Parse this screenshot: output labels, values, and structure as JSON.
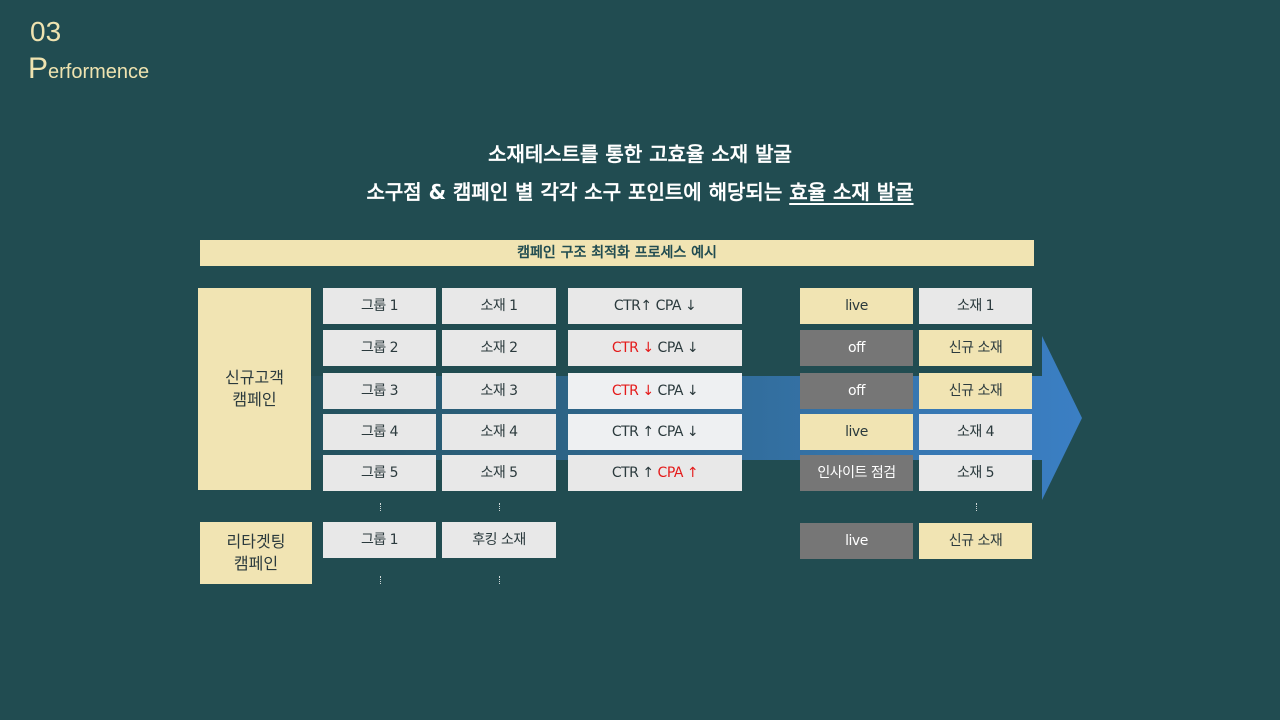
{
  "section": {
    "number": "03",
    "title_initial": "P",
    "title_rest": "erformence"
  },
  "headline": {
    "line1": "소재테스트를 통한 고효율 소재 발굴",
    "line2_prefix": "소구점 & 캠페인 별 각각 소구 포인트에 해당되는 ",
    "line2_underlined": "효율 소재 발굴"
  },
  "banner": "캠페인 구조 최적화 프로세스 예시",
  "campaigns": {
    "new_customer": "신규고객\n캠페인",
    "retargeting": "리타겟팅\n캠페인"
  },
  "rows": [
    {
      "group": "그룹 1",
      "creative": "소재 1",
      "metric": {
        "ctr": "CTR",
        "ctr_arrow": "↑",
        "cpa": "CPA",
        "cpa_arrow": "↓"
      },
      "status": "live",
      "result": "소재 1"
    },
    {
      "group": "그룹 2",
      "creative": "소재 2",
      "metric": {
        "ctr": "CTR",
        "ctr_arrow": "↓",
        "cpa": "CPA",
        "cpa_arrow": "↓"
      },
      "status": "off",
      "result": "신규 소재"
    },
    {
      "group": "그룹 3",
      "creative": "소재 3",
      "metric": {
        "ctr": "CTR",
        "ctr_arrow": "↓",
        "cpa": "CPA",
        "cpa_arrow": "↓"
      },
      "status": "off",
      "result": "신규 소재"
    },
    {
      "group": "그룹 4",
      "creative": "소재 4",
      "metric": {
        "ctr": "CTR",
        "ctr_arrow": "↑",
        "cpa": "CPA",
        "cpa_arrow": "↓"
      },
      "status": "live",
      "result": "소재 4"
    },
    {
      "group": "그룹 5",
      "creative": "소재 5",
      "metric": {
        "ctr": "CTR",
        "ctr_arrow": "↑",
        "cpa": "CPA",
        "cpa_arrow": "↑"
      },
      "status": "인사이트 점검",
      "result": "소재 5"
    }
  ],
  "retarget_row": {
    "group": "그룹 1",
    "creative": "후킹 소재",
    "status": "live",
    "result": "신규 소재"
  },
  "colors": {
    "background": "#214c51",
    "accent_yellow": "#f1e4b3",
    "alert_red": "#e41b1b",
    "arrow_blue": "#3b7fc4"
  }
}
